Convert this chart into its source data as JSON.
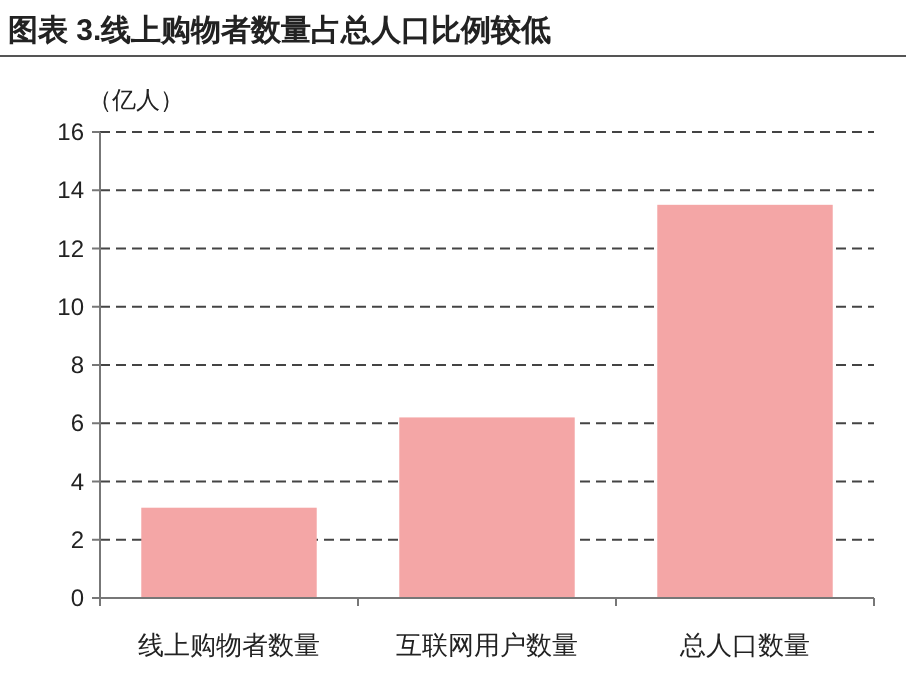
{
  "chart_data": {
    "type": "bar",
    "title": "图表 3.线上购物者数量占总人口比例较低",
    "ylabel": "（亿人）",
    "categories": [
      "线上购物者数量",
      "互联网用户数量",
      "总人口数量"
    ],
    "values": [
      3.1,
      6.2,
      13.5
    ],
    "color": "#f4a6a6",
    "ylim": [
      0,
      16
    ],
    "yticks": [
      0,
      2,
      4,
      6,
      8,
      10,
      12,
      14,
      16
    ],
    "grid": "y"
  }
}
